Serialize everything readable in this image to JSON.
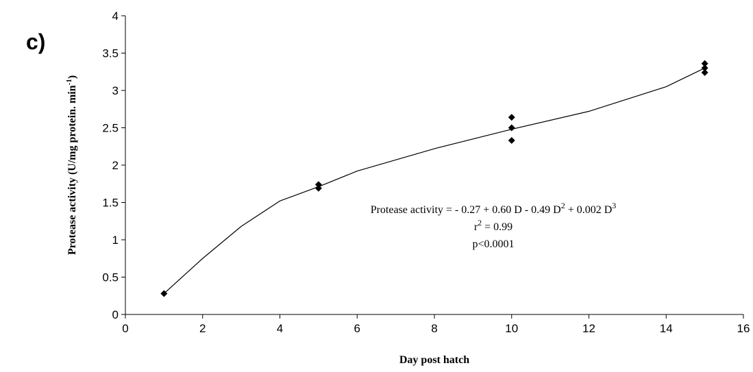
{
  "chart_data": {
    "type": "scatter",
    "panel_label": "c)",
    "x_label": "Day post hatch",
    "y_label": [
      "Protease activity (U/mg protein. min",
      "-1",
      ")"
    ],
    "xlim": [
      0,
      16
    ],
    "xticks": [
      0,
      2,
      4,
      6,
      8,
      10,
      12,
      14,
      16
    ],
    "ylim": [
      0,
      4
    ],
    "yticks": [
      0,
      0.5,
      1,
      1.5,
      2,
      2.5,
      3,
      3.5,
      4
    ],
    "series": [
      {
        "type": "scatter",
        "color": "#000000",
        "x": [
          1,
          5,
          5,
          10,
          10,
          10,
          15,
          15,
          15
        ],
        "values": [
          0.28,
          1.74,
          1.69,
          2.64,
          2.5,
          2.33,
          3.36,
          3.3,
          3.24
        ]
      },
      {
        "type": "line",
        "color": "#000000",
        "x": [
          1,
          2,
          3,
          4,
          5,
          6,
          8,
          10,
          12,
          14,
          15
        ],
        "values": [
          0.28,
          0.75,
          1.18,
          1.52,
          1.71,
          1.92,
          2.22,
          2.48,
          2.72,
          3.05,
          3.3
        ]
      }
    ],
    "annotation": [
      [
        "Protease activity = - 0.27 + 0.60  D - 0.49  D",
        "2",
        " + 0.002  D",
        "3"
      ],
      [
        "r",
        "2",
        " = 0.99"
      ],
      [
        "p<0.0001"
      ]
    ]
  }
}
